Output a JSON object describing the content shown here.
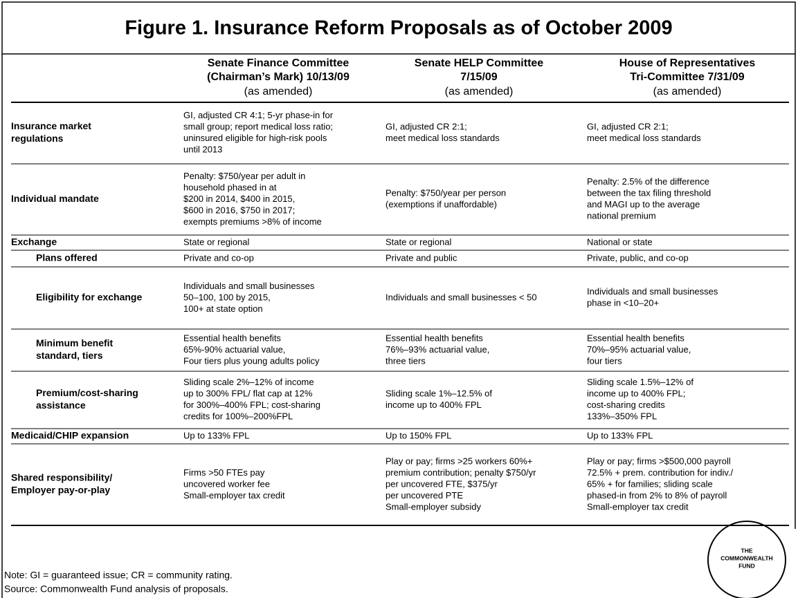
{
  "title": "Figure 1. Insurance Reform Proposals as of October 2009",
  "columns": [
    {
      "title": [
        "Senate Finance Committee",
        "(Chairman’s Mark) 10/13/09"
      ],
      "note": "(as amended)"
    },
    {
      "title": [
        "Senate HELP Committee",
        "7/15/09"
      ],
      "note": "(as amended)"
    },
    {
      "title": [
        "House of Representatives",
        "Tri-Committee 7/31/09"
      ],
      "note": "(as amended)"
    }
  ],
  "rows": [
    {
      "label": [
        "Insurance market",
        "regulations"
      ],
      "cells": [
        [
          "GI, adjusted CR 4:1; 5-yr phase-in for",
          "small group; report medical loss ratio;",
          "uninsured eligible for high-risk pools",
          "until 2013"
        ],
        [
          "GI, adjusted CR 2:1;",
          "meet medical loss standards"
        ],
        [
          "GI, adjusted CR 2:1;",
          "meet medical loss standards"
        ]
      ]
    },
    {
      "label": [
        "Individual mandate"
      ],
      "cells": [
        [
          "Penalty: $750/year per adult in",
          "household phased in at",
          "$200 in 2014, $400 in 2015,",
          "$600 in 2016, $750 in 2017;",
          "exempts premiums >8% of income"
        ],
        [
          "Penalty: $750/year per person",
          "(exemptions if unaffordable)"
        ],
        [
          "Penalty: 2.5% of the difference",
          "between the tax filing threshold",
          "and MAGI up to the average",
          "national premium"
        ]
      ]
    },
    {
      "label": [
        "Exchange"
      ],
      "cells": [
        [
          "State or regional"
        ],
        [
          "State or regional"
        ],
        [
          "National or state"
        ]
      ]
    },
    {
      "label": [
        "Plans offered"
      ],
      "cells": [
        [
          "Private and co-op"
        ],
        [
          "Private and public"
        ],
        [
          "Private, public, and co-op"
        ]
      ]
    },
    {
      "label": [
        "Eligibility for exchange"
      ],
      "cells": [
        [
          "Individuals and small businesses",
          "50–100, 100 by 2015,",
          "100+ at state option"
        ],
        [
          "Individuals and small businesses < 50"
        ],
        [
          "Individuals and small businesses",
          "phase in <10–20+"
        ]
      ]
    },
    {
      "label": [
        "Minimum benefit",
        "standard, tiers"
      ],
      "cells": [
        [
          "Essential health benefits",
          "65%-90% actuarial value,",
          "Four tiers plus young adults policy"
        ],
        [
          "Essential health benefits",
          "76%–93% actuarial value,",
          "three tiers"
        ],
        [
          "Essential health benefits",
          "70%–95% actuarial value,",
          "four tiers"
        ]
      ]
    },
    {
      "label": [
        "Premium/cost-sharing",
        "assistance"
      ],
      "cells": [
        [
          "Sliding scale 2%–12% of income",
          "up to 300% FPL/ flat cap at 12%",
          "for 300%–400% FPL; cost-sharing",
          "credits for 100%–200%FPL"
        ],
        [
          "Sliding scale 1%–12.5% of",
          "income up to 400% FPL"
        ],
        [
          "Sliding scale 1.5%–12% of",
          "income up to 400% FPL;",
          "cost-sharing credits",
          "133%–350% FPL"
        ]
      ]
    },
    {
      "label": [
        "Medicaid/CHIP expansion"
      ],
      "cells": [
        [
          "Up to 133% FPL"
        ],
        [
          "Up to 150% FPL"
        ],
        [
          "Up to 133% FPL"
        ]
      ]
    },
    {
      "label": [
        "Shared responsibility/",
        "Employer pay-or-play"
      ],
      "cells": [
        [
          "Firms >50 FTEs pay",
          "uncovered worker fee",
          "Small-employer tax credit"
        ],
        [
          "Play or pay; firms >25 workers 60%+",
          "premium contribution; penalty $750/yr",
          "per uncovered FTE, $375/yr",
          "per uncovered PTE",
          "Small-employer subsidy"
        ],
        [
          "Play or pay; firms >$500,000 payroll",
          "72.5% + prem. contribution for indiv./",
          "65% + for families; sliding scale",
          "phased-in from 2% to 8% of payroll",
          "Small-employer tax credit"
        ]
      ]
    }
  ],
  "notes": [
    "Note: GI = guaranteed issue; CR = community rating.",
    "Source: Commonwealth Fund analysis of proposals."
  ],
  "logo": [
    "THE",
    "COMMONWEALTH",
    "FUND"
  ]
}
